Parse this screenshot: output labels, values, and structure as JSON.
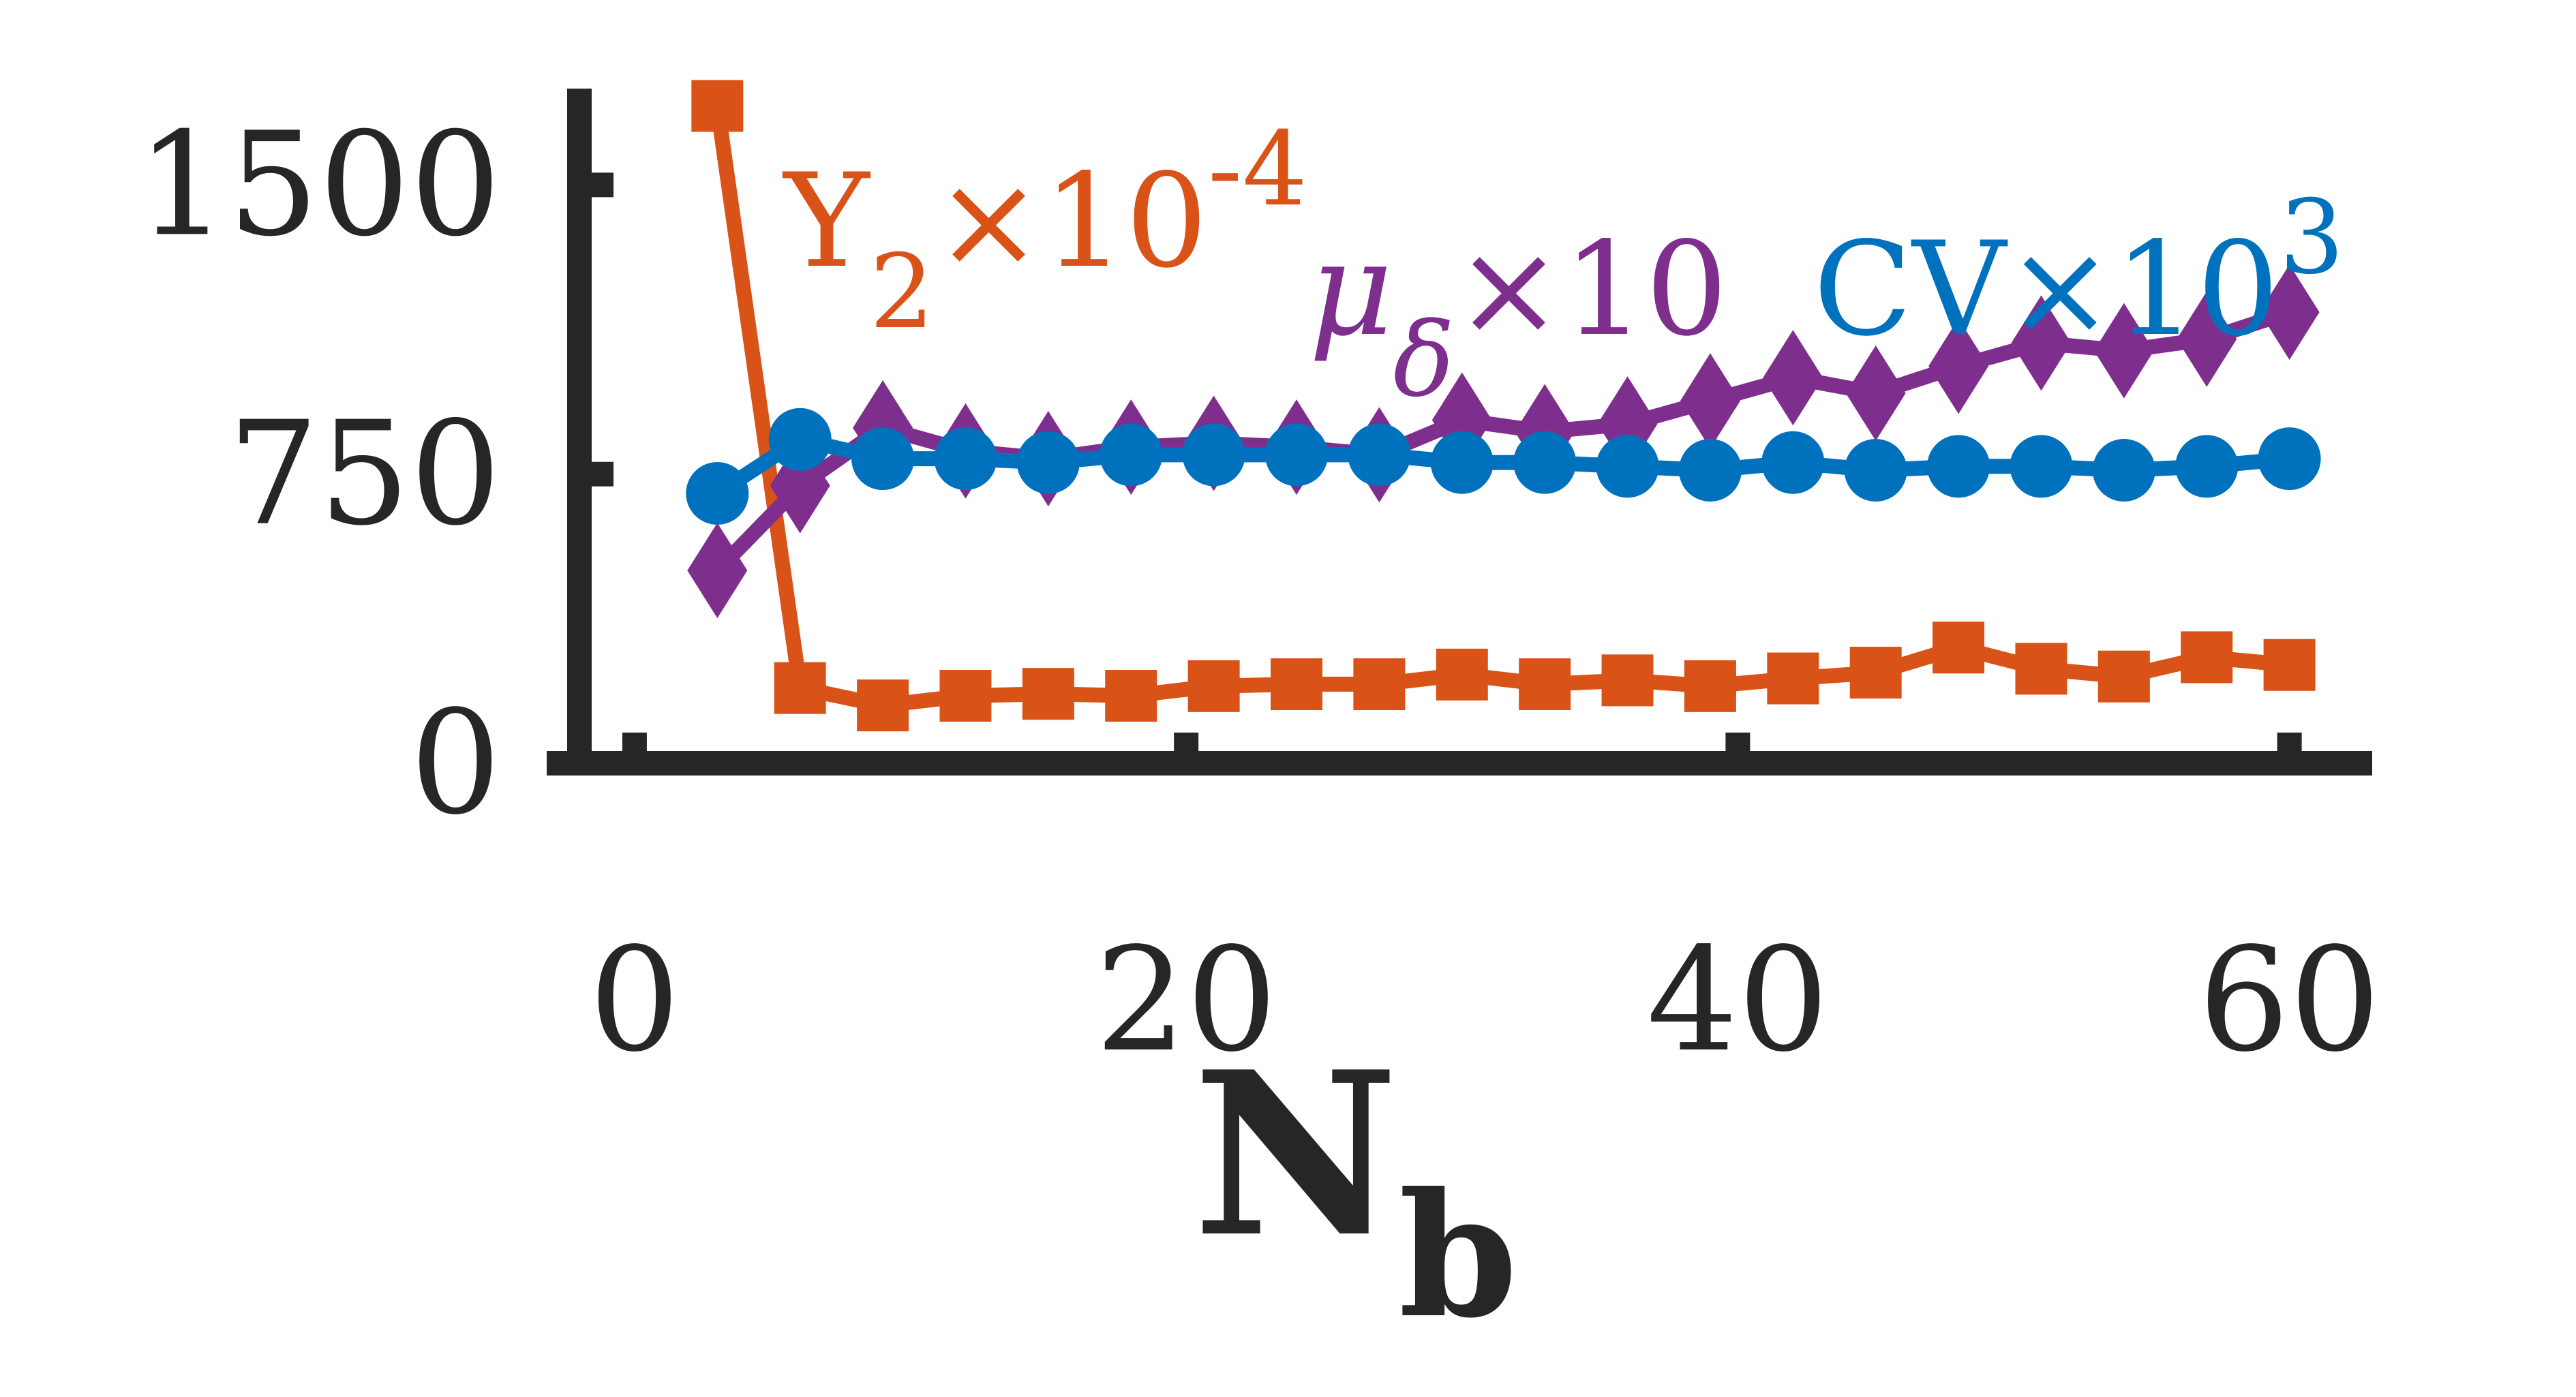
{
  "chart_data": {
    "type": "line",
    "title": "",
    "xlabel": "N",
    "xlabel_sub": "b",
    "ylabel": "",
    "xlim": [
      -2,
      63
    ],
    "ylim": [
      0,
      1750
    ],
    "xticks": [
      0,
      20,
      40,
      60
    ],
    "yticks": [
      0,
      750,
      1500
    ],
    "x": [
      3,
      6,
      9,
      12,
      15,
      18,
      21,
      24,
      27,
      30,
      33,
      36,
      39,
      42,
      45,
      48,
      51,
      54,
      57,
      60
    ],
    "series": [
      {
        "key": "Y2",
        "label_base": "Y",
        "label_sub": "2",
        "label_rest": "×10",
        "label_sup": "-4",
        "color": "#D95319",
        "marker": "square",
        "values": [
          1705,
          195,
          150,
          175,
          180,
          175,
          200,
          205,
          205,
          230,
          205,
          215,
          200,
          220,
          235,
          300,
          245,
          225,
          275,
          255
        ]
      },
      {
        "key": "mu",
        "label_base": "μ",
        "label_sub": "δ",
        "label_rest": "×10",
        "label_sup": "",
        "color": "#7E2F8E",
        "marker": "diamond",
        "values": [
          500,
          720,
          870,
          810,
          790,
          820,
          830,
          820,
          800,
          890,
          860,
          880,
          940,
          1000,
          960,
          1030,
          1090,
          1070,
          1100,
          1170
        ]
      },
      {
        "key": "CV",
        "label_base": "CV",
        "label_sub": "",
        "label_rest": "×10",
        "label_sup": "3",
        "color": "#0072BD",
        "marker": "circle",
        "values": [
          700,
          840,
          790,
          790,
          780,
          800,
          800,
          800,
          800,
          780,
          780,
          770,
          760,
          780,
          760,
          770,
          770,
          760,
          770,
          790
        ]
      }
    ]
  }
}
